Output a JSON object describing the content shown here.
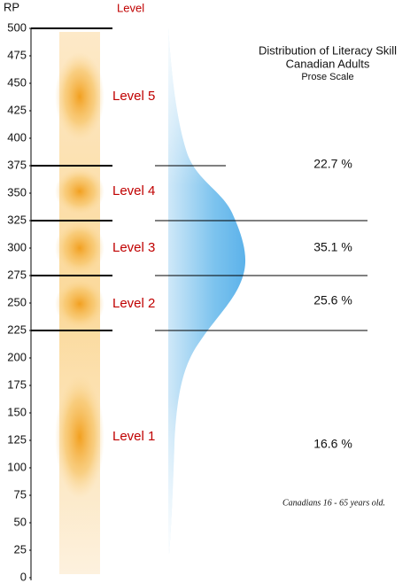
{
  "chart_data": {
    "type": "level-scale",
    "title": "Distribution of Literacy Skill",
    "subtitle": "Canadian Adults",
    "scale_name": "Prose Scale",
    "y_label": "RP",
    "level_header": "Level",
    "ylim": [
      0,
      500
    ],
    "yticks": [
      0,
      25,
      50,
      75,
      100,
      125,
      150,
      175,
      200,
      225,
      250,
      275,
      300,
      325,
      350,
      375,
      400,
      425,
      450,
      475,
      500
    ],
    "boundaries": [
      225,
      275,
      325,
      375,
      500
    ],
    "levels": [
      "Level 1",
      "Level 2",
      "Level 3",
      "Level 4",
      "Level 5"
    ],
    "values": [
      16.6,
      25.6,
      35.1,
      22.7
    ],
    "value_labels": [
      "16.6 %",
      "25.6 %",
      "35.1 %",
      "22.7 %"
    ],
    "note": "Canadians 16 - 65 years old."
  }
}
